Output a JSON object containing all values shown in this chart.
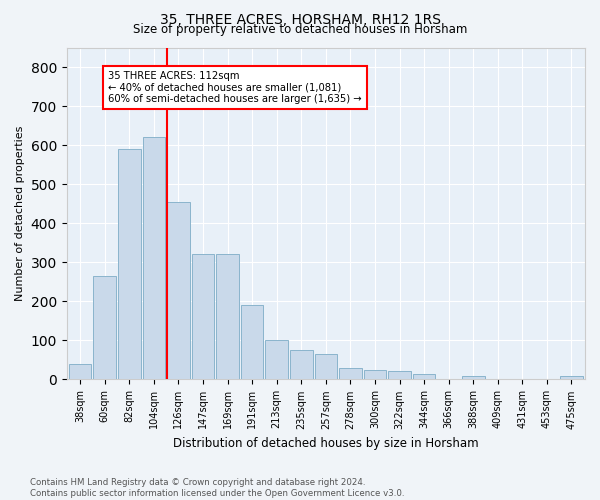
{
  "title": "35, THREE ACRES, HORSHAM, RH12 1RS",
  "subtitle": "Size of property relative to detached houses in Horsham",
  "xlabel": "Distribution of detached houses by size in Horsham",
  "ylabel": "Number of detached properties",
  "bar_labels": [
    "38sqm",
    "60sqm",
    "82sqm",
    "104sqm",
    "126sqm",
    "147sqm",
    "169sqm",
    "191sqm",
    "213sqm",
    "235sqm",
    "257sqm",
    "278sqm",
    "300sqm",
    "322sqm",
    "344sqm",
    "366sqm",
    "388sqm",
    "409sqm",
    "431sqm",
    "453sqm",
    "475sqm"
  ],
  "bar_values": [
    40,
    265,
    590,
    620,
    455,
    320,
    320,
    190,
    100,
    75,
    65,
    30,
    25,
    22,
    15,
    0,
    10,
    0,
    0,
    0,
    8
  ],
  "bar_color": "#c9d9ea",
  "bar_edge_color": "#8ab4cc",
  "vline_x": 3.55,
  "vline_color": "red",
  "annotation_text": "35 THREE ACRES: 112sqm\n← 40% of detached houses are smaller (1,081)\n60% of semi-detached houses are larger (1,635) →",
  "annotation_box_color": "white",
  "annotation_box_edge_color": "red",
  "ylim": [
    0,
    850
  ],
  "yticks": [
    0,
    100,
    200,
    300,
    400,
    500,
    600,
    700,
    800
  ],
  "footer": "Contains HM Land Registry data © Crown copyright and database right 2024.\nContains public sector information licensed under the Open Government Licence v3.0.",
  "bg_color": "#f0f4f8",
  "plot_bg_color": "#e8f0f8",
  "grid_color": "#ffffff",
  "spine_color": "#cccccc"
}
